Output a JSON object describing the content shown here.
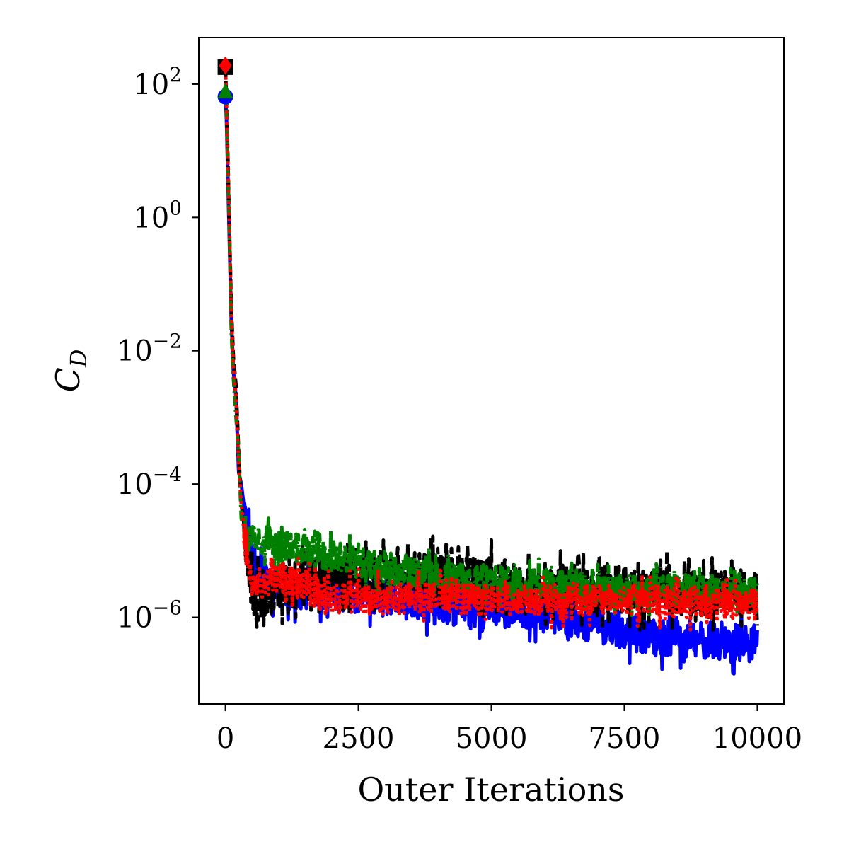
{
  "chart_data": {
    "type": "line",
    "title": "",
    "xlabel": "Outer Iterations",
    "ylabel_main": "C",
    "ylabel_sub": "D",
    "yscale": "log",
    "xlim": [
      -500,
      10500
    ],
    "ylim_exponent": [
      -7.3,
      2.7
    ],
    "xticks": [
      0,
      2500,
      5000,
      7500,
      10000
    ],
    "xtick_labels": [
      "0",
      "2500",
      "5000",
      "7500",
      "10000"
    ],
    "yticks_exponent": [
      -6,
      -4,
      -2,
      0,
      2
    ],
    "ytick_bases": [
      "10",
      "10",
      "10",
      "10",
      "10"
    ],
    "ytick_exponents": [
      "−6",
      "−4",
      "−2",
      "0",
      "2"
    ],
    "grid": false,
    "legend": "none",
    "series": [
      {
        "color": "#0000ff",
        "style": "solid",
        "marker": "circle",
        "start": {
          "x": 0,
          "y": 65
        },
        "knots": [
          [
            0,
            65
          ],
          [
            20,
            30
          ],
          [
            50,
            3
          ],
          [
            80,
            0.3
          ],
          [
            110,
            0.03
          ],
          [
            150,
            0.005
          ],
          [
            200,
            0.002
          ],
          [
            250,
            0.00015
          ],
          [
            300,
            0.0001
          ],
          [
            400,
            2e-05
          ],
          [
            600,
            4e-06
          ],
          [
            1000,
            2.5e-06
          ],
          [
            2000,
            2.5e-06
          ],
          [
            4000,
            1.5e-06
          ],
          [
            6000,
            1.2e-06
          ],
          [
            8000,
            5e-07
          ],
          [
            10000,
            4e-07
          ]
        ],
        "noise_decades": 0.35,
        "seed": 11
      },
      {
        "color": "#000000",
        "style": "dashed",
        "marker": "square",
        "start": {
          "x": 0,
          "y": 180
        },
        "knots": [
          [
            0,
            180
          ],
          [
            20,
            60
          ],
          [
            50,
            6
          ],
          [
            80,
            0.5
          ],
          [
            110,
            0.05
          ],
          [
            150,
            0.008
          ],
          [
            200,
            0.003
          ],
          [
            250,
            0.0003
          ],
          [
            300,
            5e-05
          ],
          [
            400,
            1.2e-05
          ],
          [
            500,
            2.5e-06
          ],
          [
            600,
            2e-06
          ],
          [
            1000,
            3e-06
          ],
          [
            2000,
            4.5e-06
          ],
          [
            4000,
            4e-06
          ],
          [
            6000,
            3e-06
          ],
          [
            8000,
            2.5e-06
          ],
          [
            10000,
            2e-06
          ]
        ],
        "noise_decades": 0.45,
        "seed": 23
      },
      {
        "color": "#008000",
        "style": "dashdot",
        "marker": "triangle",
        "start": {
          "x": 0,
          "y": 80
        },
        "knots": [
          [
            0,
            80
          ],
          [
            20,
            40
          ],
          [
            50,
            4
          ],
          [
            80,
            0.4
          ],
          [
            110,
            0.02
          ],
          [
            150,
            0.004
          ],
          [
            200,
            0.001
          ],
          [
            250,
            0.0003
          ],
          [
            300,
            3e-05
          ],
          [
            400,
            1.8e-05
          ],
          [
            1000,
            1.2e-05
          ],
          [
            2000,
            8e-06
          ],
          [
            4000,
            4e-06
          ],
          [
            6000,
            3e-06
          ],
          [
            8000,
            2.5e-06
          ],
          [
            10000,
            2.5e-06
          ]
        ],
        "noise_decades": 0.3,
        "seed": 37
      },
      {
        "color": "#ff0000",
        "style": "dotted",
        "marker": "diamond",
        "start": {
          "x": 0,
          "y": 190
        },
        "knots": [
          [
            0,
            190
          ],
          [
            20,
            50
          ],
          [
            50,
            5
          ],
          [
            80,
            0.5
          ],
          [
            110,
            0.04
          ],
          [
            150,
            0.006
          ],
          [
            200,
            0.002
          ],
          [
            250,
            0.0002
          ],
          [
            300,
            5e-05
          ],
          [
            400,
            8e-06
          ],
          [
            600,
            3e-06
          ],
          [
            1000,
            4e-06
          ],
          [
            2000,
            2e-06
          ],
          [
            4000,
            2e-06
          ],
          [
            6000,
            1.8e-06
          ],
          [
            8000,
            1.8e-06
          ],
          [
            10000,
            1.5e-06
          ]
        ],
        "noise_decades": 0.3,
        "seed": 53
      }
    ]
  }
}
